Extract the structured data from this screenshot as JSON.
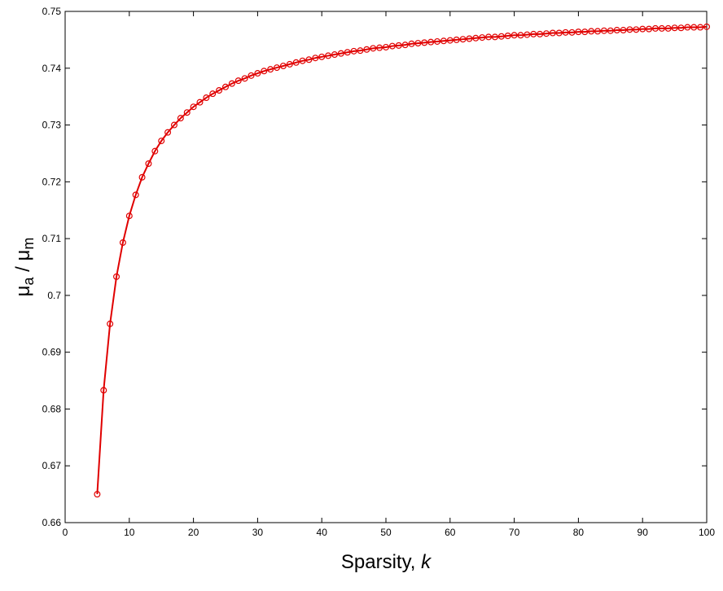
{
  "chart_data": {
    "type": "line",
    "title": "",
    "xlabel": {
      "text": "Sparsity, ",
      "var": "k"
    },
    "ylabel": {
      "mu": "μ",
      "sub_a": "a",
      "slash": " / ",
      "sub_m": "m"
    },
    "xlim": [
      0,
      100
    ],
    "ylim": [
      0.66,
      0.75
    ],
    "xticks": [
      "0",
      "10",
      "20",
      "30",
      "40",
      "50",
      "60",
      "70",
      "80",
      "90",
      "100"
    ],
    "yticks": [
      "0.66",
      "0.67",
      "0.68",
      "0.69",
      "0.7",
      "0.71",
      "0.72",
      "0.73",
      "0.74",
      "0.75"
    ],
    "grid": false,
    "colors": {
      "series": "#e00000",
      "axes": "#000000"
    },
    "series": [
      {
        "marker": "circle",
        "x": [
          5,
          6,
          7,
          8,
          9,
          10,
          11,
          12,
          13,
          14,
          15,
          16,
          17,
          18,
          19,
          20,
          21,
          22,
          23,
          24,
          25,
          26,
          27,
          28,
          29,
          30,
          31,
          32,
          33,
          34,
          35,
          36,
          37,
          38,
          39,
          40,
          41,
          42,
          43,
          44,
          45,
          46,
          47,
          48,
          49,
          50,
          51,
          52,
          53,
          54,
          55,
          56,
          57,
          58,
          59,
          60,
          61,
          62,
          63,
          64,
          65,
          66,
          67,
          68,
          69,
          70,
          71,
          72,
          73,
          74,
          75,
          76,
          77,
          78,
          79,
          80,
          81,
          82,
          83,
          84,
          85,
          86,
          87,
          88,
          89,
          90,
          91,
          92,
          93,
          94,
          95,
          96,
          97,
          98,
          99,
          100
        ],
        "y": [
          0.665,
          0.6833,
          0.695,
          0.7033,
          0.7093,
          0.714,
          0.7177,
          0.7208,
          0.7232,
          0.7254,
          0.7272,
          0.7287,
          0.73,
          0.7312,
          0.7322,
          0.7332,
          0.734,
          0.7348,
          0.7355,
          0.7361,
          0.7367,
          0.7373,
          0.7378,
          0.7382,
          0.7387,
          0.7391,
          0.7395,
          0.7398,
          0.7401,
          0.7404,
          0.7407,
          0.741,
          0.7413,
          0.7415,
          0.7418,
          0.742,
          0.7422,
          0.7424,
          0.7426,
          0.7428,
          0.743,
          0.7431,
          0.7433,
          0.7435,
          0.7436,
          0.7437,
          0.7439,
          0.744,
          0.7441,
          0.7443,
          0.7444,
          0.7445,
          0.7446,
          0.7447,
          0.7448,
          0.7449,
          0.745,
          0.7451,
          0.7452,
          0.7453,
          0.7454,
          0.7455,
          0.7455,
          0.7456,
          0.7457,
          0.7458,
          0.7458,
          0.7459,
          0.746,
          0.746,
          0.7461,
          0.7462,
          0.7462,
          0.7463,
          0.7463,
          0.7464,
          0.7464,
          0.7465,
          0.7465,
          0.7466,
          0.7466,
          0.7467,
          0.7467,
          0.7468,
          0.7468,
          0.7469,
          0.7469,
          0.747,
          0.747,
          0.747,
          0.7471,
          0.7471,
          0.7472,
          0.7472,
          0.7472,
          0.7473
        ]
      }
    ]
  }
}
